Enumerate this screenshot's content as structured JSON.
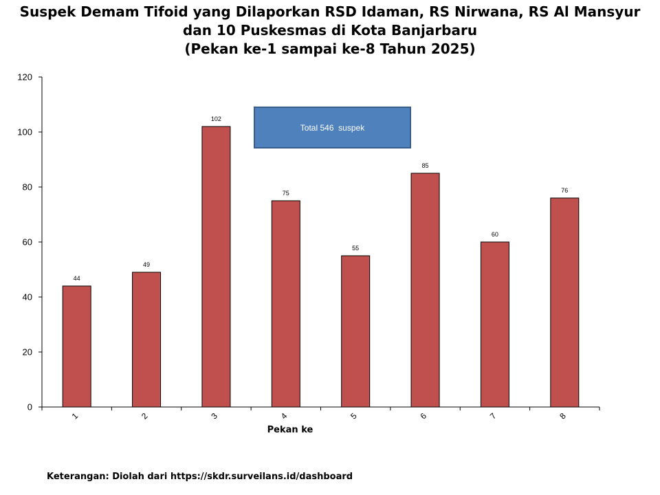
{
  "title_lines": [
    "Suspek Demam Tifoid yang Dilaporkan RSD Idaman, RS Nirwana, RS Al Mansyur",
    "dan 10 Puskesmas di Kota Banjarbaru",
    "(Pekan ke-1 sampai ke-8 Tahun 2025)"
  ],
  "chart_data": {
    "type": "bar",
    "categories": [
      "1",
      "2",
      "3",
      "4",
      "5",
      "6",
      "7",
      "8"
    ],
    "values": [
      44,
      49,
      102,
      75,
      55,
      85,
      60,
      76
    ],
    "xlabel": "Pekan ke",
    "ylabel": "",
    "ylim": [
      0,
      120
    ],
    "yticks": [
      0,
      20,
      40,
      60,
      80,
      100,
      120
    ],
    "bar_color": "#c0504d",
    "data_labels": true,
    "grid": false,
    "legend": "none",
    "annotation": {
      "text": "Total 546  suspek",
      "fill": "#4f81bd"
    }
  },
  "footnote": "Keterangan: Diolah dari https://skdr.surveilans.id/dashboard"
}
